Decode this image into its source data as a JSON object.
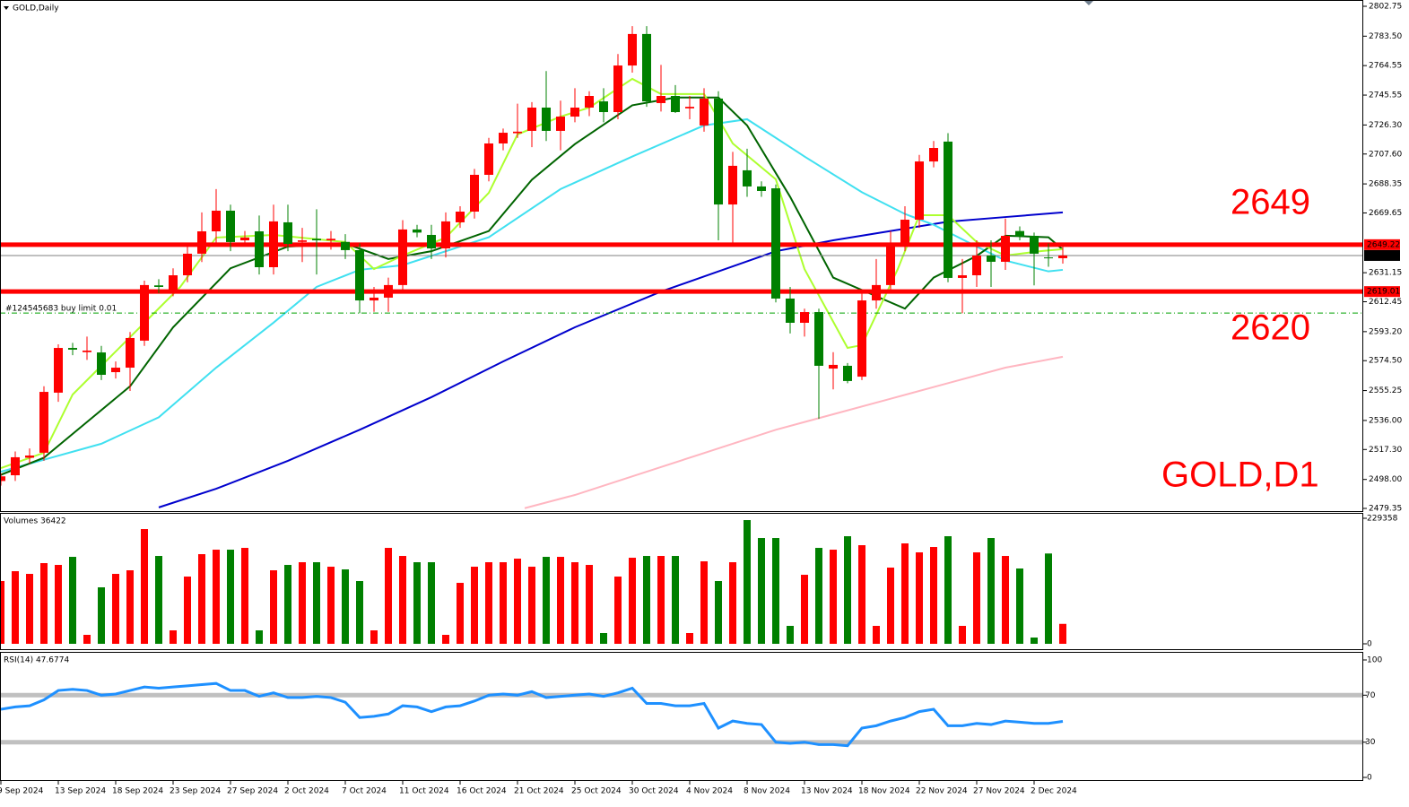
{
  "chart_data": [
    {
      "type": "candlestick",
      "title": "GOLD,Daily",
      "categories": [
        "9 Sep 2024",
        null,
        null,
        null,
        "13 Sep 2024",
        null,
        null,
        null,
        "18 Sep 2024",
        null,
        null,
        null,
        "23 Sep 2024",
        null,
        null,
        null,
        "27 Sep 2024",
        null,
        null,
        null,
        "2 Oct 2024",
        null,
        null,
        null,
        "7 Oct 2024",
        null,
        null,
        null,
        "11 Oct 2024",
        null,
        null,
        null,
        "16 Oct 2024",
        null,
        null,
        null,
        "21 Oct 2024",
        null,
        null,
        null,
        "25 Oct 2024",
        null,
        null,
        null,
        "30 Oct 2024",
        null,
        null,
        null,
        "4 Nov 2024",
        null,
        null,
        null,
        "8 Nov 2024",
        null,
        null,
        null,
        "13 Nov 2024",
        null,
        null,
        null,
        "18 Nov 2024",
        null,
        null,
        null,
        "22 Nov 2024",
        null,
        null,
        null,
        "27 Nov 2024",
        null,
        null,
        null,
        "2 Dec 2024",
        null,
        null
      ],
      "candles": [
        [
          2497,
          2502,
          2494,
          2500
        ],
        [
          2500.7,
          2516,
          2497,
          2512.3
        ],
        [
          2512,
          2518,
          2508,
          2513.4
        ],
        [
          2515.2,
          2558,
          2510,
          2554.4
        ],
        [
          2553.9,
          2585,
          2548,
          2582.7
        ],
        [
          2582.7,
          2586,
          2578,
          2581.6
        ],
        [
          2580,
          2590,
          2575,
          2581
        ],
        [
          2579.8,
          2584,
          2562,
          2565.4
        ],
        [
          2567.1,
          2574,
          2563,
          2570
        ],
        [
          2570,
          2593,
          2555,
          2589.1
        ],
        [
          2587.4,
          2626,
          2584,
          2623.2
        ],
        [
          2623,
          2627,
          2618,
          2622
        ],
        [
          2619.1,
          2634,
          2616,
          2629.5
        ],
        [
          2629.5,
          2648,
          2625,
          2643.4
        ],
        [
          2643.4,
          2670,
          2638,
          2657.8
        ],
        [
          2657.8,
          2685,
          2650,
          2671.1
        ],
        [
          2671.1,
          2675,
          2645,
          2650.9
        ],
        [
          2652,
          2658,
          2648,
          2653.8
        ],
        [
          2657.8,
          2668,
          2630,
          2634.7
        ],
        [
          2634.7,
          2675,
          2630,
          2664.2
        ],
        [
          2663.6,
          2675,
          2645,
          2649.7
        ],
        [
          2651,
          2660,
          2638,
          2652
        ],
        [
          2653,
          2672,
          2630,
          2652
        ],
        [
          2652,
          2658,
          2646,
          2653
        ],
        [
          2651,
          2656,
          2640,
          2645.7
        ],
        [
          2645.7,
          2650,
          2605,
          2613.3
        ],
        [
          2613.3,
          2622,
          2606,
          2615.1
        ],
        [
          2615.1,
          2628,
          2606,
          2623.2
        ],
        [
          2623.2,
          2665,
          2618,
          2659
        ],
        [
          2659,
          2662,
          2654,
          2657
        ],
        [
          2655.5,
          2662,
          2640,
          2646.8
        ],
        [
          2646.8,
          2670,
          2641,
          2664.2
        ],
        [
          2663.6,
          2674,
          2660,
          2670.5
        ],
        [
          2670.5,
          2698,
          2666,
          2694.2
        ],
        [
          2694.2,
          2718,
          2690,
          2714.4
        ],
        [
          2714.4,
          2724,
          2710,
          2721.3
        ],
        [
          2721,
          2740,
          2718,
          2722
        ],
        [
          2722.5,
          2741,
          2712,
          2737.5
        ],
        [
          2737.5,
          2761,
          2716,
          2722.5
        ],
        [
          2722.5,
          2742,
          2710,
          2731.7
        ],
        [
          2731.7,
          2750,
          2728,
          2737.5
        ],
        [
          2737.5,
          2748,
          2732,
          2745
        ],
        [
          2741.5,
          2750,
          2728,
          2734.6
        ],
        [
          2734.6,
          2772,
          2730,
          2764.6
        ],
        [
          2764.6,
          2790,
          2760,
          2784.9
        ],
        [
          2784.9,
          2790,
          2738,
          2741.5
        ],
        [
          2740.4,
          2765,
          2735,
          2745
        ],
        [
          2745,
          2752,
          2734,
          2734.6
        ],
        [
          2737,
          2745,
          2730,
          2738
        ],
        [
          2726,
          2750,
          2722,
          2743.3
        ],
        [
          2743.3,
          2748,
          2652,
          2675.1
        ],
        [
          2675.1,
          2709,
          2650,
          2700
        ],
        [
          2697.1,
          2711,
          2680,
          2686.7
        ],
        [
          2686.7,
          2690,
          2680,
          2683.8
        ],
        [
          2685.5,
          2688,
          2612,
          2614.5
        ],
        [
          2614.5,
          2622,
          2592,
          2598.9
        ],
        [
          2598.9,
          2608,
          2590,
          2605.8
        ],
        [
          2605.8,
          2608,
          2537,
          2571.2
        ],
        [
          2569.4,
          2580,
          2556,
          2571.8
        ],
        [
          2571.2,
          2573,
          2560,
          2561.4
        ],
        [
          2564.2,
          2620,
          2562,
          2613.3
        ],
        [
          2613.3,
          2640,
          2608,
          2623.2
        ],
        [
          2623.2,
          2658,
          2620,
          2649.7
        ],
        [
          2649.7,
          2674,
          2645,
          2665.3
        ],
        [
          2665.3,
          2707,
          2660,
          2702.8
        ],
        [
          2702.8,
          2716,
          2699,
          2711.5
        ],
        [
          2715.6,
          2721,
          2625,
          2627.8
        ],
        [
          2627.8,
          2640,
          2605,
          2629.5
        ],
        [
          2629.5,
          2652,
          2622,
          2642.2
        ],
        [
          2642.2,
          2652,
          2622,
          2638.2
        ],
        [
          2638.2,
          2666,
          2633,
          2654.9
        ],
        [
          2658,
          2661,
          2652,
          2654.5
        ],
        [
          2654.9,
          2657,
          2623,
          2643.4
        ],
        [
          2641,
          2650,
          2635,
          2640.5
        ],
        [
          2640.5,
          2649,
          2637,
          2642.24
        ]
      ],
      "up_color": "#ff0000",
      "down_color": "#008000",
      "ylim": [
        2479.35,
        2802.75
      ],
      "yticks": [
        2802.75,
        {
          "value": 2783.5,
          "label": "2783.50"
        },
        2764.55,
        2745.55,
        {
          "value": 2726.3,
          "label": "2726.30"
        },
        {
          "value": 2707.6,
          "label": "2707.60"
        },
        2688.35,
        2669.65,
        2631.15,
        2612.45,
        {
          "value": 2593.2,
          "label": "2593.20"
        },
        {
          "value": 2574.5,
          "label": "2574.50"
        },
        2555.25,
        {
          "value": 2536,
          "label": "2536.00"
        },
        {
          "value": 2517.3,
          "label": "2517.30"
        },
        {
          "value": 2498,
          "label": "2498.00"
        },
        2479.35
      ],
      "moving_averages": [
        {
          "color": "#ffb6c1",
          "x": [
            36.5,
            40,
            45,
            50,
            54,
            58,
            62,
            66,
            70,
            74
          ],
          "values": [
            2479.5,
            2488,
            2503,
            2518,
            2530,
            2540,
            2550,
            2560,
            2570,
            2577
          ]
        },
        {
          "color": "#0000cd",
          "x": [
            11,
            15,
            20,
            25,
            30,
            35,
            40,
            46,
            50,
            54,
            58,
            62,
            66,
            70,
            74
          ],
          "values": [
            2480,
            2492,
            2510,
            2530,
            2551,
            2574,
            2596,
            2619,
            2632,
            2645,
            2652,
            2658,
            2664,
            2667,
            2670
          ]
        },
        {
          "color": "#40e0f0",
          "x": [
            0,
            7,
            11,
            15,
            19,
            22,
            25,
            28,
            34,
            39,
            44,
            49,
            52,
            56,
            60,
            63,
            65,
            68,
            70,
            73,
            74
          ],
          "values": [
            2503,
            2521,
            2538,
            2570,
            2599,
            2622,
            2633,
            2636,
            2654,
            2685,
            2706,
            2726,
            2730,
            2706,
            2683,
            2669,
            2662,
            2648,
            2639,
            2632,
            2633
          ]
        },
        {
          "color": "#006400",
          "x": [
            0,
            3,
            6,
            9,
            12,
            16,
            20,
            24,
            27,
            30,
            34,
            37,
            40,
            44,
            47,
            50,
            52,
            55,
            58,
            61,
            63,
            65,
            68,
            70,
            73,
            74
          ],
          "values": [
            2501,
            2512,
            2535,
            2558,
            2596,
            2634,
            2648,
            2650,
            2640,
            2645,
            2658,
            2691,
            2714,
            2739,
            2744,
            2744,
            2726,
            2680,
            2628,
            2616,
            2608,
            2628,
            2642,
            2655,
            2654,
            2646
          ]
        },
        {
          "color": "#adff2f",
          "x": [
            0,
            3,
            5,
            7.5,
            10,
            12.5,
            15,
            19,
            24,
            26,
            28,
            31,
            34,
            36,
            39,
            41,
            44,
            46,
            49,
            51,
            54,
            56,
            59,
            60,
            62.5,
            64,
            66,
            68,
            70,
            72.5,
            74
          ],
          "values": [
            2505.3,
            2515.2,
            2552.7,
            2575.8,
            2598.9,
            2622,
            2653.8,
            2655.5,
            2650.9,
            2633.5,
            2642.2,
            2653.8,
            2682.6,
            2720.2,
            2731.7,
            2737.5,
            2756,
            2746.2,
            2746.2,
            2714.4,
            2691.3,
            2633.5,
            2582.7,
            2584.5,
            2633.5,
            2668.2,
            2668.2,
            2650.9,
            2642.2,
            2645.1,
            2646.3
          ]
        }
      ],
      "levels": [
        {
          "value": 2649.22,
          "color": "#ff0000"
        },
        {
          "value": 2619.01,
          "color": "#ff0000"
        },
        {
          "value": 2642.24,
          "color": "#808080"
        }
      ],
      "order": {
        "label": "#124545683 buy limit 0.01",
        "value": 2605.2,
        "color": "#00a000"
      },
      "annotations": [
        "2649",
        "2620",
        "GOLD,D1"
      ]
    },
    {
      "type": "bar",
      "title": "Volumes 36422",
      "values": [
        114660,
        132678,
        127764,
        147420,
        144144,
        158886,
        16380,
        103194,
        127764,
        134316,
        209664,
        160524,
        24570,
        122850,
        163800,
        171990,
        171990,
        175266,
        24570,
        134316,
        144144,
        149058,
        149058,
        140868,
        135954,
        114660,
        24570,
        175266,
        160524,
        149058,
        149058,
        16380,
        111384,
        140868,
        149058,
        149058,
        155610,
        140868,
        158886,
        158886,
        149058,
        144144,
        19656,
        122850,
        157248,
        160524,
        160524,
        160524,
        19656,
        150696,
        114660,
        149058,
        226044,
        193284,
        193284,
        32760,
        126126,
        175266,
        171990,
        196560,
        180180,
        32760,
        139230,
        183456,
        167076,
        176904,
        196560,
        32760,
        167076,
        193284,
        160524,
        137592,
        11466,
        165000,
        36422
      ],
      "ylim": [
        0,
        229358
      ],
      "yticks": [
        0,
        229358
      ]
    },
    {
      "type": "line",
      "title": "RSI(14) 47.6774",
      "color": "#1e90ff",
      "values": [
        58,
        60,
        61,
        66,
        74,
        75,
        74,
        70,
        71,
        74,
        77,
        76,
        77,
        78,
        79,
        80,
        74,
        74,
        69,
        72,
        68,
        68,
        69,
        68,
        64,
        51,
        52,
        54,
        61,
        60,
        56,
        60,
        61,
        65,
        70,
        71,
        70,
        73,
        68,
        69,
        70,
        71,
        69,
        72,
        76,
        63,
        63,
        61,
        61,
        63,
        42,
        48,
        46,
        45,
        30,
        29,
        30,
        28,
        28,
        27,
        42,
        44,
        48,
        51,
        56,
        58,
        44,
        44,
        46,
        45,
        48,
        47,
        46,
        46,
        47.6774
      ],
      "ylim": [
        0,
        100
      ],
      "yticks": [
        0,
        30,
        70,
        100
      ],
      "level_lines": [
        30,
        70
      ]
    }
  ]
}
